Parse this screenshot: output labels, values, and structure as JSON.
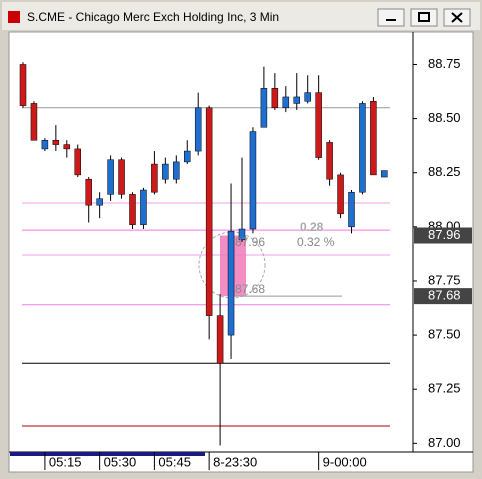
{
  "window_title": "S.CME - Chicago Merc Exch Holding Inc, 3 Min",
  "chart_data": {
    "type": "candlestick",
    "categories": [
      null,
      null,
      "05:15",
      null,
      null,
      null,
      null,
      "05:30",
      null,
      null,
      null,
      null,
      "05:45",
      null,
      null,
      null,
      null,
      "8-23:30",
      null,
      null,
      null,
      null,
      null,
      null,
      null,
      null,
      null,
      "9-00:00",
      null,
      null,
      null,
      null,
      null,
      null
    ],
    "open": [
      88.75,
      88.57,
      88.36,
      88.4,
      88.38,
      88.36,
      88.22,
      88.1,
      88.15,
      88.31,
      88.15,
      88.01,
      88.29,
      88.22,
      88.22,
      88.3,
      88.35,
      88.55,
      87.59,
      87.5,
      87.94,
      87.99,
      88.46,
      88.64,
      88.55,
      88.57,
      88.58,
      88.62,
      88.39,
      88.24,
      88.0,
      88.16,
      88.58,
      88.23
    ],
    "high": [
      88.76,
      88.58,
      88.41,
      88.47,
      88.4,
      88.38,
      88.23,
      88.16,
      88.33,
      88.32,
      88.16,
      88.18,
      88.35,
      88.32,
      88.33,
      88.4,
      88.62,
      88.56,
      87.69,
      88.2,
      88.32,
      88.46,
      88.74,
      88.71,
      88.65,
      88.71,
      88.7,
      88.7,
      88.4,
      88.25,
      88.17,
      88.58,
      88.6,
      88.26
    ],
    "low": [
      88.55,
      88.4,
      88.35,
      88.35,
      88.32,
      88.23,
      88.02,
      88.04,
      88.12,
      88.13,
      87.99,
      87.99,
      88.15,
      88.2,
      88.2,
      88.29,
      88.33,
      87.48,
      86.99,
      87.39,
      87.93,
      87.97,
      88.46,
      88.54,
      88.53,
      88.54,
      88.57,
      88.31,
      88.19,
      88.04,
      87.97,
      88.15,
      88.24,
      88.23
    ],
    "close": [
      88.56,
      88.4,
      88.4,
      88.38,
      88.36,
      88.24,
      88.1,
      88.13,
      88.31,
      88.15,
      88.01,
      88.17,
      88.16,
      88.29,
      88.3,
      88.35,
      88.55,
      87.59,
      87.37,
      87.98,
      87.99,
      88.44,
      88.64,
      88.55,
      88.6,
      88.6,
      88.62,
      88.32,
      88.22,
      88.06,
      88.16,
      88.57,
      88.24,
      88.26
    ],
    "up_color": "#1f6fd0",
    "down_color": "#cc1a1a",
    "ylim": [
      86.96,
      88.9
    ],
    "yticks": [
      {
        "value": 87,
        "label": "87.00"
      },
      {
        "value": 87.25,
        "label": "87.25"
      },
      {
        "value": 87.5,
        "label": "87.50"
      },
      {
        "value": 87.75,
        "label": "87.75"
      },
      {
        "value": 88,
        "label": "88.00"
      },
      {
        "value": 88.25,
        "label": "88.25"
      },
      {
        "value": 88.5,
        "label": "88.50"
      },
      {
        "value": 88.75,
        "label": "88.75"
      }
    ],
    "levels": [
      {
        "value": 88.55,
        "color": "#999999"
      },
      {
        "value": 88.11,
        "color": "#f0a0e8"
      },
      {
        "value": 87.985,
        "color": "#ff70e0"
      },
      {
        "value": 87.87,
        "color": "#f0a0e8"
      },
      {
        "value": 87.64,
        "color": "#f080e0"
      },
      {
        "value": 87.37,
        "color": "#000000"
      },
      {
        "value": 87.08,
        "color": "#b00000"
      }
    ],
    "price_markers": [
      87.96,
      87.68
    ],
    "annotations": [
      "87.96",
      "0.28",
      "0.32 %",
      "87.68"
    ]
  }
}
